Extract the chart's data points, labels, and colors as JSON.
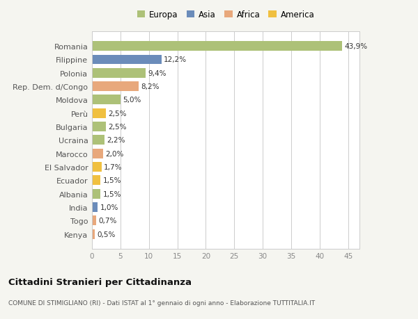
{
  "categories": [
    "Kenya",
    "Togo",
    "India",
    "Albania",
    "Ecuador",
    "El Salvador",
    "Marocco",
    "Ucraina",
    "Bulgaria",
    "Perù",
    "Moldova",
    "Rep. Dem. d/Congo",
    "Polonia",
    "Filippine",
    "Romania"
  ],
  "values": [
    0.5,
    0.7,
    1.0,
    1.5,
    1.5,
    1.7,
    2.0,
    2.2,
    2.5,
    2.5,
    5.0,
    8.2,
    9.4,
    12.2,
    43.9
  ],
  "labels": [
    "0,5%",
    "0,7%",
    "1,0%",
    "1,5%",
    "1,5%",
    "1,7%",
    "2,0%",
    "2,2%",
    "2,5%",
    "2,5%",
    "5,0%",
    "8,2%",
    "9,4%",
    "12,2%",
    "43,9%"
  ],
  "colors": [
    "#e8a87c",
    "#e8a87c",
    "#6b8cba",
    "#adc178",
    "#f0c040",
    "#f0c040",
    "#e8a87c",
    "#adc178",
    "#adc178",
    "#f0c040",
    "#adc178",
    "#e8a87c",
    "#adc178",
    "#6b8cba",
    "#adc178"
  ],
  "legend_labels": [
    "Europa",
    "Asia",
    "Africa",
    "America"
  ],
  "legend_colors": [
    "#adc178",
    "#6b8cba",
    "#e8a87c",
    "#f0c040"
  ],
  "title": "Cittadini Stranieri per Cittadinanza",
  "subtitle": "COMUNE DI STIMIGLIANO (RI) - Dati ISTAT al 1° gennaio di ogni anno - Elaborazione TUTTITALIA.IT",
  "xlim": [
    0,
    47
  ],
  "xticks": [
    0,
    5,
    10,
    15,
    20,
    25,
    30,
    35,
    40,
    45
  ],
  "background_color": "#f5f5f0",
  "bar_background": "#ffffff",
  "grid_color": "#cccccc"
}
